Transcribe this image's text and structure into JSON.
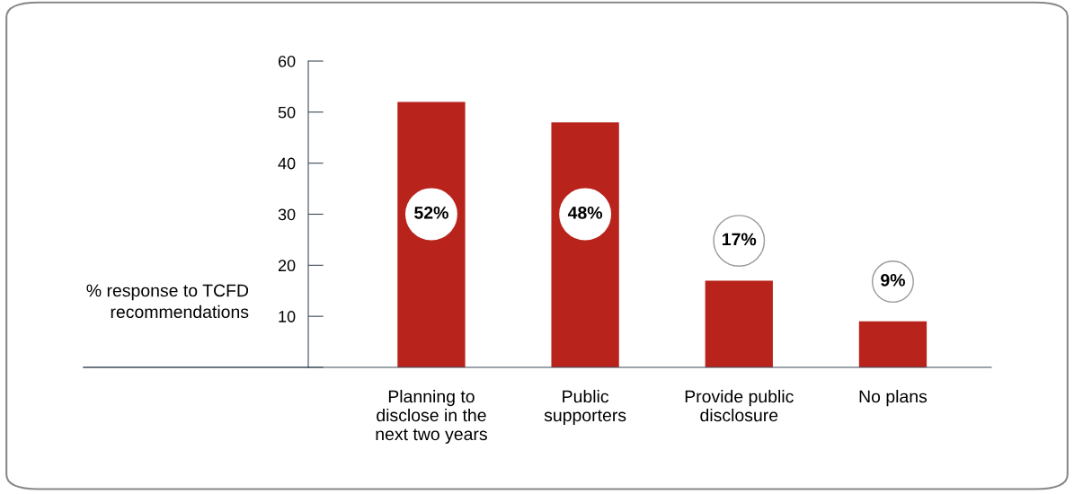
{
  "chart_data": {
    "type": "bar",
    "ylabel": "% response to TCFD\nrecommendations",
    "categories": [
      "Planning to\ndisclose in the\nnext two years",
      "Public\nsupporters",
      "Provide public\ndisclosure",
      "No plans"
    ],
    "values": [
      52,
      48,
      17,
      9
    ],
    "value_labels": [
      "52%",
      "48%",
      "17%",
      "9%"
    ],
    "color": "#b8241c",
    "ylim": [
      0,
      60
    ],
    "yticks": [
      {
        "value": 0,
        "label": null
      },
      10,
      20,
      30,
      40,
      50,
      60
    ],
    "grid": false,
    "legend": false
  }
}
